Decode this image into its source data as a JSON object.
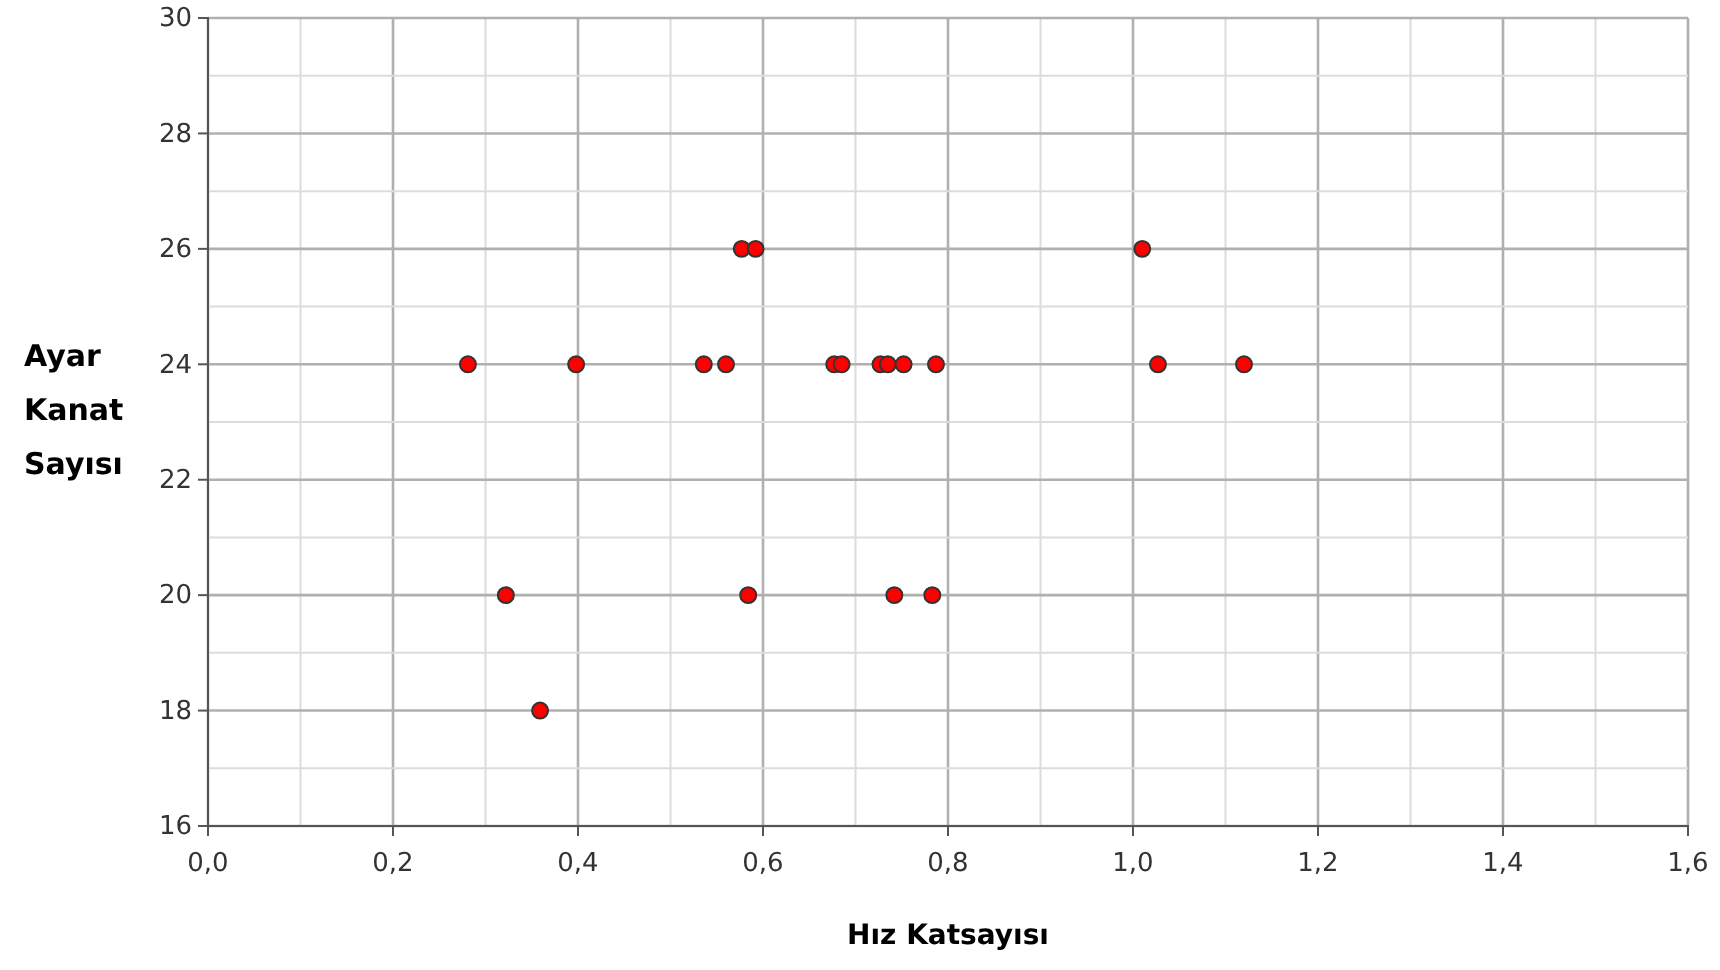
{
  "chart_data": {
    "type": "scatter",
    "xlabel": "Hız Katsayısı",
    "ylabel": "Ayar Kanat Sayısı",
    "x": [
      0.577,
      0.592,
      1.01,
      0.281,
      0.398,
      0.536,
      0.56,
      0.677,
      0.685,
      0.727,
      0.735,
      0.752,
      0.787,
      1.027,
      1.12,
      0.322,
      0.584,
      0.742,
      0.783,
      0.359
    ],
    "values": [
      26,
      26,
      26,
      24,
      24,
      24,
      24,
      24,
      24,
      24,
      24,
      24,
      24,
      24,
      24,
      20,
      20,
      20,
      20,
      18
    ],
    "color": "#ff0000",
    "marker": "circle",
    "xlim": [
      0,
      1.6
    ],
    "xticks": [
      {
        "value": 0,
        "label": "0,0"
      },
      {
        "value": 0.2,
        "label": "0,2"
      },
      {
        "value": 0.4,
        "label": "0,4"
      },
      {
        "value": 0.6,
        "label": "0,6"
      },
      {
        "value": 0.8,
        "label": "0,8"
      },
      {
        "value": 1,
        "label": "1,0"
      },
      {
        "value": 1.2,
        "label": "1,2"
      },
      {
        "value": 1.4,
        "label": "1,4"
      },
      {
        "value": 1.6,
        "label": "1,6"
      }
    ],
    "ylim": [
      16,
      30
    ],
    "yticks": [
      16,
      18,
      20,
      22,
      24,
      26,
      28,
      30
    ],
    "grid": true
  }
}
